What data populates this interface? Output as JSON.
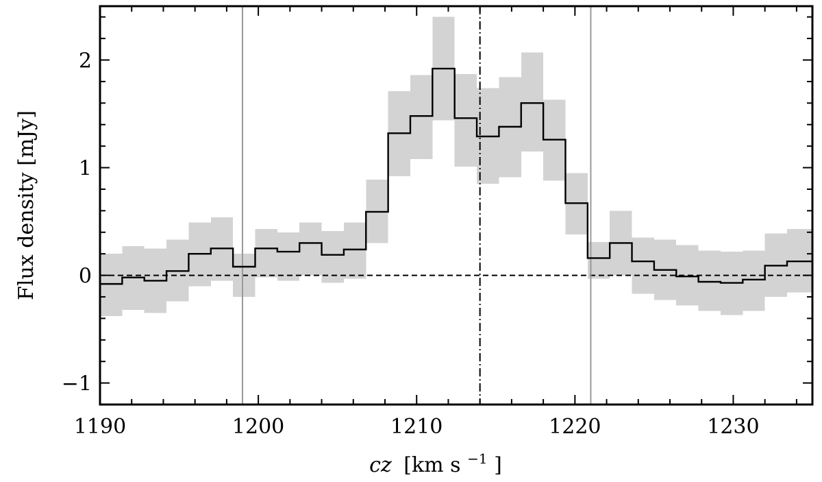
{
  "chart_data": {
    "type": "line",
    "xlabel": {
      "italic": "cz",
      "units": "[km s",
      "exp": "−1",
      "close": "]"
    },
    "ylabel": "Flux density [mJy]",
    "xlim": [
      1190,
      1235
    ],
    "ylim": [
      -1.2,
      2.5
    ],
    "xticks": [
      1190,
      1200,
      1210,
      1220,
      1230
    ],
    "xtick_labels": [
      "1190",
      "1200",
      "1210",
      "1220",
      "1230"
    ],
    "yticks": [
      -1,
      0,
      1,
      2
    ],
    "ytick_labels": [
      "−1",
      "0",
      "1",
      "2"
    ],
    "bin_edges": [
      1190,
      1191.4,
      1192.8,
      1194.2,
      1195.6,
      1197.0,
      1198.4,
      1199.8,
      1201.2,
      1202.6,
      1204.0,
      1205.4,
      1206.8,
      1208.2,
      1209.6,
      1211.0,
      1212.4,
      1213.8,
      1215.2,
      1216.6,
      1218.0,
      1219.4,
      1220.8,
      1222.2,
      1223.6,
      1225.0,
      1226.4,
      1227.8,
      1229.2,
      1230.6,
      1232.0,
      1233.4,
      1235.0
    ],
    "series": [
      {
        "values": [
          -0.08,
          -0.02,
          -0.05,
          0.04,
          0.2,
          0.25,
          0.08,
          0.25,
          0.22,
          0.3,
          0.19,
          0.24,
          0.59,
          1.32,
          1.48,
          1.92,
          1.46,
          1.29,
          1.38,
          1.6,
          1.26,
          0.67,
          0.16,
          0.3,
          0.13,
          0.05,
          -0.01,
          -0.06,
          -0.07,
          -0.04,
          0.09,
          0.13,
          -0.02
        ],
        "color": "#000000"
      }
    ],
    "uncertainty_band": {
      "lower": [
        -0.38,
        -0.32,
        -0.35,
        -0.24,
        -0.1,
        -0.05,
        -0.2,
        -0.02,
        -0.05,
        0.0,
        -0.07,
        -0.03,
        0.3,
        0.92,
        1.08,
        1.44,
        1.01,
        0.85,
        0.91,
        1.15,
        0.88,
        0.38,
        -0.03,
        0.0,
        -0.17,
        -0.23,
        -0.28,
        -0.33,
        -0.37,
        -0.33,
        -0.2,
        -0.16,
        -0.3
      ],
      "upper": [
        0.2,
        0.27,
        0.25,
        0.33,
        0.49,
        0.54,
        0.2,
        0.43,
        0.4,
        0.49,
        0.41,
        0.49,
        0.89,
        1.71,
        1.86,
        2.4,
        1.87,
        1.74,
        1.84,
        2.07,
        1.63,
        0.95,
        0.31,
        0.6,
        0.35,
        0.33,
        0.28,
        0.23,
        0.22,
        0.23,
        0.39,
        0.43,
        0.28
      ],
      "color": "#d3d3d3"
    },
    "reference_lines": [
      {
        "orientation": "horizontal",
        "value": 0,
        "style": "dashed",
        "color": "#000000"
      },
      {
        "orientation": "vertical",
        "value": 1214,
        "style": "dash-dot",
        "color": "#000000"
      },
      {
        "orientation": "vertical",
        "value": 1199,
        "style": "solid",
        "color": "#999999"
      },
      {
        "orientation": "vertical",
        "value": 1221,
        "style": "solid",
        "color": "#999999"
      }
    ],
    "grid": false,
    "legend": "none"
  }
}
